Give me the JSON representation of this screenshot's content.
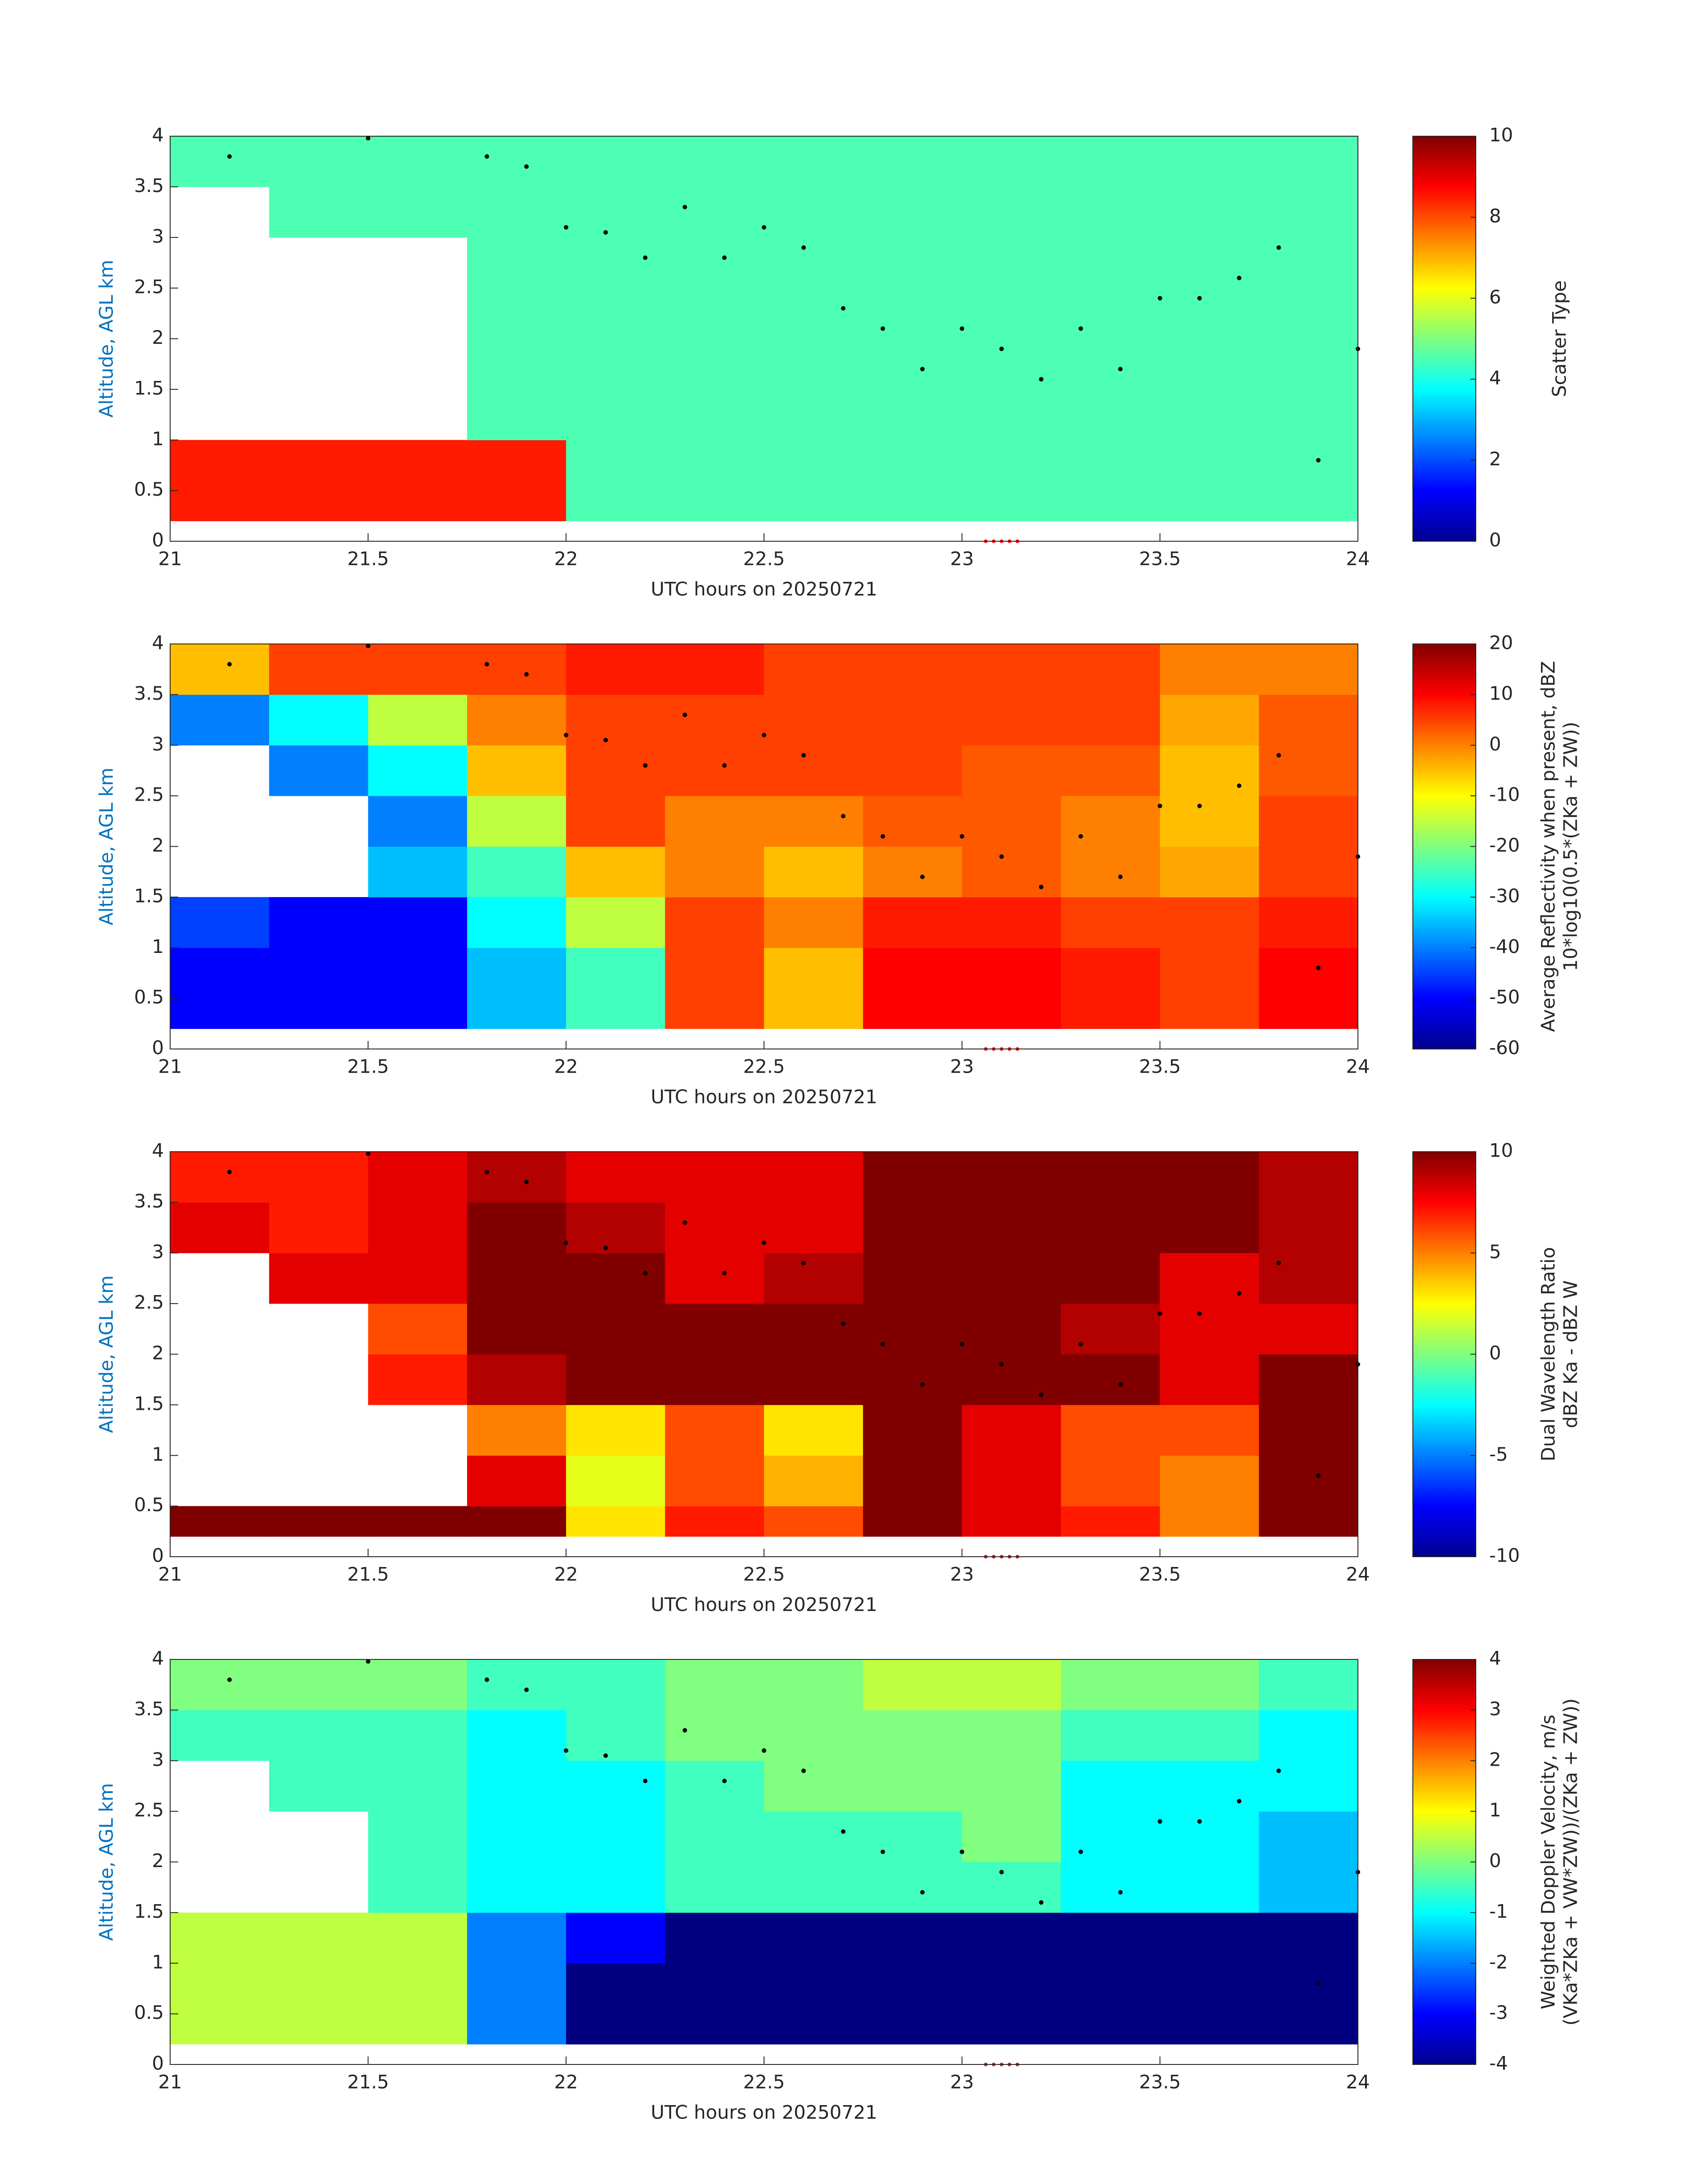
{
  "chart_data": [
    {
      "type": "heatmap",
      "xlabel": "UTC hours on 20250721",
      "ylabel": "Altitude, AGL km",
      "colorbar_label": [
        "Scatter Type"
      ],
      "colormap": "jet",
      "xlim": [
        21,
        24
      ],
      "ylim": [
        0,
        4
      ],
      "xticks": [
        21,
        21.5,
        22,
        22.5,
        23,
        23.5,
        24
      ],
      "yticks": [
        0,
        0.5,
        1,
        1.5,
        2,
        2.5,
        3,
        3.5,
        4
      ],
      "clim": [
        0,
        10
      ],
      "cticks": [
        0,
        2,
        4,
        6,
        8,
        10
      ],
      "xbins": [
        21,
        21.25,
        21.5,
        21.75,
        22,
        22.25,
        22.5,
        22.75,
        23,
        23.25,
        23.5,
        23.75,
        24
      ],
      "ybins": [
        0.2,
        0.5,
        1,
        1.5,
        2,
        2.5,
        3,
        3.5,
        4
      ],
      "z": [
        [
          8.5,
          8.5,
          8.5,
          8.5,
          4.5,
          4.5,
          4.5,
          4.5,
          4.5,
          4.5,
          4.5,
          4.5
        ],
        [
          8.5,
          8.5,
          8.5,
          8.5,
          4.5,
          4.5,
          4.5,
          4.5,
          4.5,
          4.5,
          4.5,
          4.5
        ],
        [
          null,
          null,
          null,
          4.5,
          4.5,
          4.5,
          4.5,
          4.5,
          4.5,
          4.5,
          4.5,
          4.5
        ],
        [
          null,
          null,
          null,
          4.5,
          4.5,
          4.5,
          4.5,
          4.5,
          4.5,
          4.5,
          4.5,
          4.5
        ],
        [
          null,
          null,
          null,
          4.5,
          4.5,
          4.5,
          4.5,
          4.5,
          4.5,
          4.5,
          4.5,
          4.5
        ],
        [
          null,
          null,
          null,
          4.5,
          4.5,
          4.5,
          4.5,
          4.5,
          4.5,
          4.5,
          4.5,
          4.5
        ],
        [
          null,
          4.5,
          4.5,
          4.5,
          4.5,
          4.5,
          4.5,
          4.5,
          4.5,
          4.5,
          4.5,
          4.5
        ],
        [
          4.5,
          4.5,
          4.5,
          4.5,
          4.5,
          4.5,
          4.5,
          4.5,
          4.5,
          4.5,
          4.5,
          4.5
        ]
      ],
      "points": {
        "color": "#000000",
        "x": [
          21.15,
          21.5,
          21.8,
          21.9,
          22,
          22.1,
          22.2,
          22.3,
          22.4,
          22.5,
          22.6,
          22.7,
          22.8,
          22.9,
          23,
          23.1,
          23.2,
          23.3,
          23.4,
          23.5,
          23.6,
          23.7,
          23.8,
          23.9,
          24
        ],
        "y": [
          3.8,
          3.98,
          3.8,
          3.7,
          3.1,
          3.05,
          2.8,
          3.3,
          2.8,
          3.1,
          2.9,
          2.3,
          2.1,
          1.7,
          2.1,
          1.9,
          1.6,
          2.1,
          1.7,
          2.4,
          2.4,
          2.6,
          2.9,
          0.8,
          1.9
        ]
      },
      "markers": {
        "color": "#ff0000",
        "x": [
          23.06,
          23.08,
          23.1,
          23.12,
          23.14
        ],
        "y": [
          0,
          0,
          0,
          0,
          0
        ]
      }
    },
    {
      "type": "heatmap",
      "xlabel": "UTC hours on 20250721",
      "ylabel": "Altitude, AGL km",
      "colorbar_label": [
        "Average Reflectivity when present, dBZ",
        "10*log10(0.5*(ZKa + ZW))"
      ],
      "colormap": "jet",
      "xlim": [
        21,
        24
      ],
      "ylim": [
        0,
        4
      ],
      "xticks": [
        21,
        21.5,
        22,
        22.5,
        23,
        23.5,
        24
      ],
      "yticks": [
        0,
        0.5,
        1,
        1.5,
        2,
        2.5,
        3,
        3.5,
        4
      ],
      "clim": [
        -60,
        20
      ],
      "cticks": [
        -60,
        -50,
        -40,
        -30,
        -20,
        -10,
        0,
        10,
        20
      ],
      "xbins": [
        21,
        21.25,
        21.5,
        21.75,
        22,
        22.25,
        22.5,
        22.75,
        23,
        23.25,
        23.5,
        23.75,
        24
      ],
      "ybins": [
        0.2,
        0.5,
        1,
        1.5,
        2,
        2.5,
        3,
        3.5,
        4
      ],
      "z": [
        [
          -50,
          -50,
          -50,
          -35,
          -25,
          5,
          -5,
          10,
          10,
          8,
          5,
          10
        ],
        [
          -50,
          -50,
          -50,
          -35,
          -25,
          5,
          -5,
          10,
          10,
          8,
          5,
          10
        ],
        [
          -45,
          -50,
          -50,
          -30,
          -15,
          5,
          0,
          8,
          8,
          5,
          5,
          8
        ],
        [
          null,
          null,
          -35,
          -25,
          -5,
          0,
          -5,
          0,
          3,
          0,
          -3,
          5
        ],
        [
          null,
          null,
          -40,
          -15,
          5,
          0,
          0,
          3,
          3,
          0,
          -5,
          5
        ],
        [
          null,
          -40,
          -30,
          -5,
          5,
          5,
          5,
          5,
          3,
          3,
          -5,
          3
        ],
        [
          -40,
          -30,
          -15,
          0,
          5,
          5,
          5,
          5,
          5,
          5,
          -3,
          3
        ],
        [
          -5,
          5,
          5,
          5,
          8,
          8,
          5,
          5,
          5,
          5,
          0,
          0
        ]
      ],
      "points": {
        "color": "#000000",
        "x": [
          21.15,
          21.5,
          21.8,
          21.9,
          22,
          22.1,
          22.2,
          22.3,
          22.4,
          22.5,
          22.6,
          22.7,
          22.8,
          22.9,
          23,
          23.1,
          23.2,
          23.3,
          23.4,
          23.5,
          23.6,
          23.7,
          23.8,
          23.9,
          24
        ],
        "y": [
          3.8,
          3.98,
          3.8,
          3.7,
          3.1,
          3.05,
          2.8,
          3.3,
          2.8,
          3.1,
          2.9,
          2.3,
          2.1,
          1.7,
          2.1,
          1.9,
          1.6,
          2.1,
          1.7,
          2.4,
          2.4,
          2.6,
          2.9,
          0.8,
          1.9
        ]
      },
      "markers": {
        "color": "#ff0000",
        "x": [
          23.06,
          23.08,
          23.1,
          23.12,
          23.14
        ],
        "y": [
          0,
          0,
          0,
          0,
          0
        ]
      }
    },
    {
      "type": "heatmap",
      "xlabel": "UTC hours on 20250721",
      "ylabel": "Altitude, AGL km",
      "colorbar_label": [
        "Dual Wavelength Ratio",
        "dBZ Ka - dBZ W"
      ],
      "colormap": "jet",
      "xlim": [
        21,
        24
      ],
      "ylim": [
        0,
        4
      ],
      "xticks": [
        21,
        21.5,
        22,
        22.5,
        23,
        23.5,
        24
      ],
      "yticks": [
        0,
        0.5,
        1,
        1.5,
        2,
        2.5,
        3,
        3.5,
        4
      ],
      "clim": [
        -10,
        10
      ],
      "cticks": [
        -10,
        -5,
        0,
        5,
        10
      ],
      "xbins": [
        21,
        21.25,
        21.5,
        21.75,
        22,
        22.25,
        22.5,
        22.75,
        23,
        23.25,
        23.5,
        23.75,
        24
      ],
      "ybins": [
        0.2,
        0.5,
        1,
        1.5,
        2,
        2.5,
        3,
        3.5,
        4
      ],
      "z": [
        [
          10,
          10,
          10,
          10,
          3,
          7,
          6,
          10,
          8,
          7,
          5,
          10
        ],
        [
          null,
          null,
          null,
          8,
          2,
          6,
          4,
          10,
          8,
          6,
          5,
          10
        ],
        [
          null,
          null,
          null,
          5,
          3,
          6,
          3,
          10,
          8,
          6,
          6,
          10
        ],
        [
          null,
          null,
          7,
          9,
          10,
          10,
          10,
          10,
          10,
          10,
          8,
          10
        ],
        [
          null,
          null,
          6,
          10,
          10,
          10,
          10,
          10,
          10,
          9,
          8,
          8
        ],
        [
          null,
          8,
          8,
          10,
          10,
          8,
          9,
          10,
          10,
          10,
          8,
          9
        ],
        [
          8,
          7,
          8,
          10,
          9,
          8,
          8,
          10,
          10,
          10,
          10,
          9
        ],
        [
          7,
          7,
          8,
          9,
          8,
          8,
          8,
          10,
          10,
          10,
          10,
          9
        ]
      ],
      "points": {
        "color": "#000000",
        "x": [
          21.15,
          21.5,
          21.8,
          21.9,
          22,
          22.1,
          22.2,
          22.3,
          22.4,
          22.5,
          22.6,
          22.7,
          22.8,
          22.9,
          23,
          23.1,
          23.2,
          23.3,
          23.4,
          23.5,
          23.6,
          23.7,
          23.8,
          23.9,
          24
        ],
        "y": [
          3.8,
          3.98,
          3.8,
          3.7,
          3.1,
          3.05,
          2.8,
          3.3,
          2.8,
          3.1,
          2.9,
          2.3,
          2.1,
          1.7,
          2.1,
          1.9,
          1.6,
          2.1,
          1.7,
          2.4,
          2.4,
          2.6,
          2.9,
          0.8,
          1.9
        ]
      },
      "markers": {
        "color": "#ff0000",
        "x": [
          23.06,
          23.08,
          23.1,
          23.12,
          23.14
        ],
        "y": [
          0,
          0,
          0,
          0,
          0
        ]
      }
    },
    {
      "type": "heatmap",
      "xlabel": "UTC hours on 20250721",
      "ylabel": "Altitude, AGL km",
      "colorbar_label": [
        "Weighted Doppler Velocity, m/s",
        "(VKa*ZKa + VW*ZW))/(ZKa + ZW))"
      ],
      "colormap": "jet",
      "xlim": [
        21,
        24
      ],
      "ylim": [
        0,
        4
      ],
      "xticks": [
        21,
        21.5,
        22,
        22.5,
        23,
        23.5,
        24
      ],
      "yticks": [
        0,
        0.5,
        1,
        1.5,
        2,
        2.5,
        3,
        3.5,
        4
      ],
      "clim": [
        -4,
        4
      ],
      "cticks": [
        -4,
        -3,
        -2,
        -1,
        0,
        1,
        2,
        3,
        4
      ],
      "xbins": [
        21,
        21.25,
        21.5,
        21.75,
        22,
        22.25,
        22.5,
        22.75,
        23,
        23.25,
        23.5,
        23.75,
        24
      ],
      "ybins": [
        0.2,
        0.5,
        1,
        1.5,
        2,
        2.5,
        3,
        3.5,
        4
      ],
      "z": [
        [
          0.5,
          0.5,
          0.5,
          -2,
          -4,
          -4,
          -4,
          -4,
          -4,
          -4,
          -4,
          -4
        ],
        [
          0.5,
          0.5,
          0.5,
          -2,
          -4,
          -4,
          -4,
          -4,
          -4,
          -4,
          -4,
          -4
        ],
        [
          0.5,
          0.5,
          0.5,
          -2,
          -3,
          -4,
          -4,
          -4,
          -4,
          -4,
          -4,
          -4
        ],
        [
          null,
          null,
          -0.5,
          -1,
          -1,
          -0.5,
          -0.5,
          -0.5,
          -0.5,
          -1,
          -1,
          -1.5
        ],
        [
          null,
          null,
          -0.5,
          -1,
          -1,
          -0.5,
          -0.5,
          -0.5,
          0,
          -1,
          -1,
          -1.5
        ],
        [
          null,
          -0.5,
          -0.5,
          -1,
          -1,
          -0.5,
          0,
          0,
          0,
          -1,
          -1,
          -1
        ],
        [
          -0.5,
          -0.5,
          -0.5,
          -1,
          -0.5,
          0,
          0,
          0,
          0,
          -0.5,
          -0.5,
          -1
        ],
        [
          0,
          0,
          0,
          -0.5,
          -0.5,
          0,
          0,
          0.5,
          0.5,
          0,
          0,
          -0.5
        ]
      ],
      "points": {
        "color": "#000000",
        "x": [
          21.15,
          21.5,
          21.8,
          21.9,
          22,
          22.1,
          22.2,
          22.3,
          22.4,
          22.5,
          22.6,
          22.7,
          22.8,
          22.9,
          23,
          23.1,
          23.2,
          23.3,
          23.4,
          23.5,
          23.6,
          23.7,
          23.8,
          23.9,
          24
        ],
        "y": [
          3.8,
          3.98,
          3.8,
          3.7,
          3.1,
          3.05,
          2.8,
          3.3,
          2.8,
          3.1,
          2.9,
          2.3,
          2.1,
          1.7,
          2.1,
          1.9,
          1.6,
          2.1,
          1.7,
          2.4,
          2.4,
          2.6,
          2.9,
          0.8,
          1.9
        ]
      },
      "markers": {
        "color": "#ff0000",
        "x": [
          23.06,
          23.08,
          23.1,
          23.12,
          23.14
        ],
        "y": [
          0,
          0,
          0,
          0,
          0
        ]
      }
    }
  ]
}
